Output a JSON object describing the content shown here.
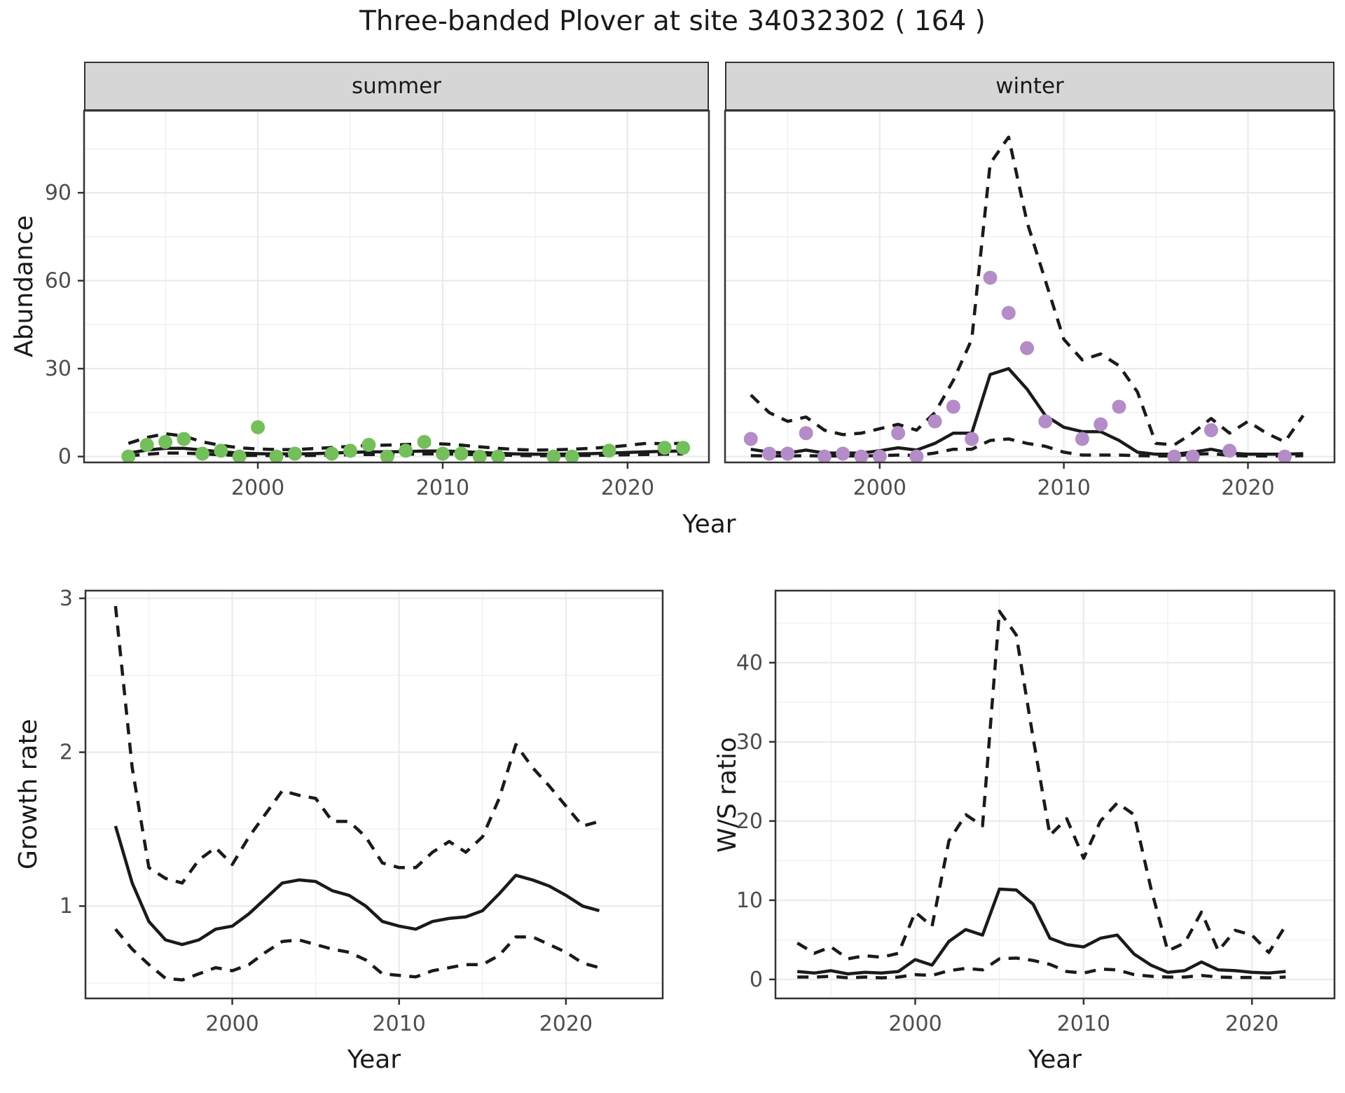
{
  "title": "Three-banded Plover at site 34032302 ( 164 )",
  "facets": {
    "summer_label": "summer",
    "winter_label": "winter"
  },
  "axis_titles": {
    "abundance": "Abundance",
    "year_top": "Year",
    "growth_rate": "Growth rate",
    "year_growth": "Year",
    "ws_ratio": "W/S ratio",
    "year_ws": "Year"
  },
  "colors": {
    "summer_point": "#74BF5C",
    "winter_point": "#B48CC8",
    "line": "#1a1a1a",
    "grid_major": "#ebebeb",
    "grid_minor": "#f0f0f0",
    "panel_border": "#333333",
    "strip_bg": "#d6d6d6",
    "tick_text": "#4d4d4d"
  },
  "chart_data": [
    {
      "id": "abundance_summer",
      "type": "line+scatter",
      "facet": "summer",
      "title": "Abundance vs Year (summer)",
      "xlabel": "Year",
      "ylabel": "Abundance",
      "x_domain": [
        1990.6,
        2024.4
      ],
      "y_domain": [
        -2,
        118
      ],
      "x_ticks": [
        2000,
        2010,
        2020
      ],
      "x_minor": [
        1995,
        2005,
        2015
      ],
      "y_ticks": [
        0,
        30,
        60,
        90
      ],
      "y_minor": [
        15,
        45,
        75,
        105
      ],
      "show_y_tick_labels": true,
      "legend_position": "none",
      "grid": true,
      "points": {
        "color_key": "summer_point",
        "x": [
          1993,
          1994,
          1995,
          1996,
          1997,
          1998,
          1999,
          2000,
          2001,
          2002,
          2004,
          2005,
          2006,
          2007,
          2008,
          2009,
          2010,
          2011,
          2012,
          2013,
          2016,
          2017,
          2019,
          2022,
          2023
        ],
        "y": [
          0,
          4,
          5,
          6,
          1,
          2,
          0,
          10,
          0,
          1,
          1,
          2,
          4,
          0,
          2,
          5,
          1,
          1,
          0,
          0,
          0,
          0,
          2,
          3,
          3
        ]
      },
      "series": [
        {
          "name": "fit",
          "style": "solid",
          "x": [
            1993,
            1994,
            1995,
            1996,
            1997,
            1998,
            1999,
            2000,
            2001,
            2002,
            2003,
            2004,
            2005,
            2006,
            2007,
            2008,
            2009,
            2010,
            2011,
            2012,
            2013,
            2014,
            2015,
            2016,
            2017,
            2018,
            2019,
            2020,
            2021,
            2022,
            2023
          ],
          "y": [
            1.2,
            2.2,
            2.8,
            2.8,
            2.2,
            1.6,
            1.2,
            1.0,
            0.9,
            0.9,
            1.0,
            1.2,
            1.4,
            1.6,
            1.6,
            1.7,
            1.9,
            1.9,
            1.7,
            1.4,
            1.1,
            0.9,
            0.8,
            0.8,
            0.9,
            1.0,
            1.2,
            1.4,
            1.6,
            1.8,
            1.9
          ]
        },
        {
          "name": "upper_ci",
          "style": "dashed",
          "x": [
            1993,
            1994,
            1995,
            1996,
            1997,
            1998,
            1999,
            2000,
            2001,
            2002,
            2003,
            2004,
            2005,
            2006,
            2007,
            2008,
            2009,
            2010,
            2011,
            2012,
            2013,
            2014,
            2015,
            2016,
            2017,
            2018,
            2019,
            2020,
            2021,
            2022,
            2023
          ],
          "y": [
            4.5,
            6.5,
            7.8,
            7.0,
            5.0,
            3.8,
            3.0,
            2.6,
            2.4,
            2.4,
            2.7,
            3.1,
            3.5,
            3.8,
            3.9,
            4.1,
            4.4,
            4.3,
            3.9,
            3.3,
            2.8,
            2.4,
            2.2,
            2.3,
            2.5,
            2.8,
            3.2,
            3.8,
            4.5,
            4.4,
            4.5
          ]
        },
        {
          "name": "lower_ci",
          "style": "dashed",
          "x": [
            1993,
            1994,
            1995,
            1996,
            1997,
            1998,
            1999,
            2000,
            2001,
            2002,
            2003,
            2004,
            2005,
            2006,
            2007,
            2008,
            2009,
            2010,
            2011,
            2012,
            2013,
            2014,
            2015,
            2016,
            2017,
            2018,
            2019,
            2020,
            2021,
            2022,
            2023
          ],
          "y": [
            0.2,
            0.8,
            1.2,
            1.2,
            0.9,
            0.6,
            0.4,
            0.4,
            0.3,
            0.3,
            0.4,
            0.5,
            0.6,
            0.7,
            0.7,
            0.8,
            0.9,
            0.9,
            0.8,
            0.6,
            0.5,
            0.4,
            0.3,
            0.3,
            0.4,
            0.4,
            0.5,
            0.6,
            0.7,
            0.8,
            0.9
          ]
        }
      ]
    },
    {
      "id": "abundance_winter",
      "type": "line+scatter",
      "facet": "winter",
      "title": "Abundance vs Year (winter)",
      "xlabel": "Year",
      "ylabel": "Abundance",
      "x_domain": [
        1991.6,
        2024.7
      ],
      "y_domain": [
        -2,
        118
      ],
      "x_ticks": [
        2000,
        2010,
        2020
      ],
      "x_minor": [
        1995,
        2005,
        2015
      ],
      "y_ticks": [
        0,
        30,
        60,
        90
      ],
      "y_minor": [
        15,
        45,
        75,
        105
      ],
      "show_y_tick_labels": false,
      "legend_position": "none",
      "grid": true,
      "points": {
        "color_key": "winter_point",
        "x": [
          1993,
          1994,
          1995,
          1996,
          1997,
          1998,
          1999,
          2000,
          2001,
          2002,
          2003,
          2004,
          2005,
          2006,
          2007,
          2008,
          2009,
          2011,
          2012,
          2013,
          2016,
          2017,
          2018,
          2019,
          2022
        ],
        "y": [
          6,
          1,
          1,
          8,
          0,
          1,
          0,
          0,
          8,
          0,
          12,
          17,
          6,
          61,
          49,
          37,
          12,
          6,
          11,
          17,
          0,
          0,
          9,
          2,
          0
        ]
      },
      "series": [
        {
          "name": "fit",
          "style": "solid",
          "x": [
            1993,
            1994,
            1995,
            1996,
            1997,
            1998,
            1999,
            2000,
            2001,
            2002,
            2003,
            2004,
            2005,
            2006,
            2007,
            2008,
            2009,
            2010,
            2011,
            2012,
            2013,
            2014,
            2015,
            2016,
            2017,
            2018,
            2019,
            2020,
            2021,
            2022,
            2023
          ],
          "y": [
            2.5,
            1.5,
            1.2,
            2.2,
            1.2,
            1.2,
            1.2,
            2.0,
            3.0,
            2.2,
            4.5,
            8.0,
            8.0,
            28,
            30,
            23,
            14,
            10,
            8.5,
            8.5,
            5.5,
            1.5,
            0.8,
            0.8,
            1.5,
            2.5,
            1.2,
            0.8,
            0.8,
            0.8,
            1.0
          ]
        },
        {
          "name": "upper_ci",
          "style": "dashed",
          "x": [
            1993,
            1994,
            1995,
            1996,
            1997,
            1998,
            1999,
            2000,
            2001,
            2002,
            2003,
            2004,
            2005,
            2006,
            2007,
            2008,
            2009,
            2010,
            2011,
            2012,
            2013,
            2014,
            2015,
            2016,
            2017,
            2018,
            2019,
            2020,
            2021,
            2022,
            2023
          ],
          "y": [
            21,
            15,
            12,
            13.5,
            9,
            7.5,
            8,
            9.5,
            11,
            9,
            15,
            26,
            40,
            100,
            109,
            80,
            60,
            40,
            33,
            35,
            31,
            22,
            4.5,
            4,
            8,
            13,
            8,
            12,
            8,
            5,
            14
          ]
        },
        {
          "name": "lower_ci",
          "style": "dashed",
          "x": [
            1993,
            1994,
            1995,
            1996,
            1997,
            1998,
            1999,
            2000,
            2001,
            2002,
            2003,
            2004,
            2005,
            2006,
            2007,
            2008,
            2009,
            2010,
            2011,
            2012,
            2013,
            2014,
            2015,
            2016,
            2017,
            2018,
            2019,
            2020,
            2021,
            2022,
            2023
          ],
          "y": [
            0.3,
            0.2,
            0.2,
            0.3,
            0.2,
            0.2,
            0.2,
            0.3,
            0.5,
            0.4,
            1.2,
            2.5,
            2.5,
            5.5,
            6,
            4.5,
            3.5,
            1.5,
            0.5,
            0.5,
            0.5,
            0.3,
            0.2,
            0.2,
            0.8,
            1.0,
            0.4,
            0.2,
            0.2,
            0.2,
            0.3
          ]
        }
      ]
    },
    {
      "id": "growth_rate",
      "type": "line",
      "title": "Growth rate vs Year",
      "xlabel": "Year",
      "ylabel": "Growth rate",
      "x_domain": [
        1991.2,
        2025.8
      ],
      "y_domain": [
        0.4,
        3.05
      ],
      "x_ticks": [
        2000,
        2010,
        2020
      ],
      "x_minor": [
        1995,
        2005,
        2015
      ],
      "y_ticks": [
        1,
        2,
        3
      ],
      "y_minor": [
        0.5,
        1.5,
        2.5
      ],
      "show_y_tick_labels": true,
      "legend_position": "none",
      "grid": true,
      "series": [
        {
          "name": "fit",
          "style": "solid",
          "x": [
            1993,
            1994,
            1995,
            1996,
            1997,
            1998,
            1999,
            2000,
            2001,
            2002,
            2003,
            2004,
            2005,
            2006,
            2007,
            2008,
            2009,
            2010,
            2011,
            2012,
            2013,
            2014,
            2015,
            2016,
            2017,
            2018,
            2019,
            2020,
            2021,
            2022
          ],
          "y": [
            1.52,
            1.15,
            0.9,
            0.78,
            0.75,
            0.78,
            0.85,
            0.87,
            0.95,
            1.05,
            1.15,
            1.17,
            1.16,
            1.1,
            1.07,
            1.0,
            0.9,
            0.87,
            0.85,
            0.9,
            0.92,
            0.93,
            0.97,
            1.08,
            1.2,
            1.17,
            1.13,
            1.07,
            1.0,
            0.97
          ]
        },
        {
          "name": "upper_ci",
          "style": "dashed",
          "x": [
            1993,
            1994,
            1995,
            1996,
            1997,
            1998,
            1999,
            2000,
            2001,
            2002,
            2003,
            2004,
            2005,
            2006,
            2007,
            2008,
            2009,
            2010,
            2011,
            2012,
            2013,
            2014,
            2015,
            2016,
            2017,
            2018,
            2019,
            2020,
            2021,
            2022
          ],
          "y": [
            2.95,
            1.9,
            1.25,
            1.18,
            1.15,
            1.3,
            1.38,
            1.27,
            1.45,
            1.6,
            1.75,
            1.72,
            1.7,
            1.55,
            1.55,
            1.45,
            1.28,
            1.25,
            1.25,
            1.35,
            1.42,
            1.35,
            1.45,
            1.7,
            2.05,
            1.9,
            1.78,
            1.65,
            1.52,
            1.55
          ]
        },
        {
          "name": "lower_ci",
          "style": "dashed",
          "x": [
            1993,
            1994,
            1995,
            1996,
            1997,
            1998,
            1999,
            2000,
            2001,
            2002,
            2003,
            2004,
            2005,
            2006,
            2007,
            2008,
            2009,
            2010,
            2011,
            2012,
            2013,
            2014,
            2015,
            2016,
            2017,
            2018,
            2019,
            2020,
            2021,
            2022
          ],
          "y": [
            0.85,
            0.72,
            0.62,
            0.53,
            0.52,
            0.56,
            0.6,
            0.58,
            0.62,
            0.7,
            0.77,
            0.78,
            0.75,
            0.72,
            0.7,
            0.65,
            0.56,
            0.55,
            0.54,
            0.58,
            0.6,
            0.62,
            0.62,
            0.68,
            0.8,
            0.8,
            0.75,
            0.7,
            0.63,
            0.6
          ]
        }
      ]
    },
    {
      "id": "ws_ratio",
      "type": "line",
      "title": "W/S ratio vs Year",
      "xlabel": "Year",
      "ylabel": "W/S ratio",
      "x_domain": [
        1991.7,
        2024.9
      ],
      "y_domain": [
        -2.4,
        49.1
      ],
      "x_ticks": [
        2000,
        2010,
        2020
      ],
      "x_minor": [
        1995,
        2005,
        2015
      ],
      "y_ticks": [
        0,
        10,
        20,
        30,
        40
      ],
      "y_minor": [
        5,
        15,
        25,
        35,
        45
      ],
      "show_y_tick_labels": true,
      "legend_position": "none",
      "grid": true,
      "series": [
        {
          "name": "fit",
          "style": "solid",
          "x": [
            1993,
            1994,
            1995,
            1996,
            1997,
            1998,
            1999,
            2000,
            2001,
            2002,
            2003,
            2004,
            2005,
            2006,
            2007,
            2008,
            2009,
            2010,
            2011,
            2012,
            2013,
            2014,
            2015,
            2016,
            2017,
            2018,
            2019,
            2020,
            2021,
            2022
          ],
          "y": [
            1.0,
            0.8,
            1.1,
            0.7,
            0.9,
            0.8,
            1.0,
            2.5,
            1.8,
            4.8,
            6.3,
            5.6,
            11.4,
            11.3,
            9.5,
            5.2,
            4.4,
            4.1,
            5.2,
            5.6,
            3.2,
            1.8,
            0.9,
            1.1,
            2.2,
            1.2,
            1.1,
            0.9,
            0.8,
            1.0
          ]
        },
        {
          "name": "upper_ci",
          "style": "dashed",
          "x": [
            1993,
            1994,
            1995,
            1996,
            1997,
            1998,
            1999,
            2000,
            2001,
            2002,
            2003,
            2004,
            2005,
            2006,
            2007,
            2008,
            2009,
            2010,
            2011,
            2012,
            2013,
            2014,
            2015,
            2016,
            2017,
            2018,
            2019,
            2020,
            2021,
            2022
          ],
          "y": [
            4.6,
            3.3,
            4.1,
            2.6,
            3.0,
            2.8,
            3.3,
            8.5,
            6.7,
            17.5,
            20.8,
            19.4,
            46.5,
            43.5,
            30.5,
            18.2,
            20.3,
            15.3,
            20.0,
            22.3,
            20.8,
            11.5,
            3.6,
            4.6,
            8.5,
            3.6,
            6.2,
            5.6,
            3.4,
            6.8
          ]
        },
        {
          "name": "lower_ci",
          "style": "dashed",
          "x": [
            1993,
            1994,
            1995,
            1996,
            1997,
            1998,
            1999,
            2000,
            2001,
            2002,
            2003,
            2004,
            2005,
            2006,
            2007,
            2008,
            2009,
            2010,
            2011,
            2012,
            2013,
            2014,
            2015,
            2016,
            2017,
            2018,
            2019,
            2020,
            2021,
            2022
          ],
          "y": [
            0.3,
            0.3,
            0.4,
            0.2,
            0.3,
            0.2,
            0.3,
            0.6,
            0.5,
            1.1,
            1.4,
            1.2,
            2.6,
            2.7,
            2.4,
            1.9,
            1.0,
            0.8,
            1.3,
            1.2,
            0.6,
            0.4,
            0.3,
            0.3,
            0.5,
            0.3,
            0.25,
            0.25,
            0.2,
            0.3
          ]
        }
      ]
    }
  ]
}
